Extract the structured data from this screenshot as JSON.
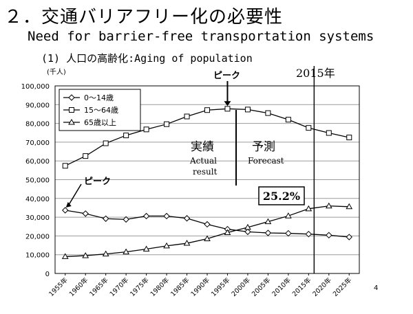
{
  "slide": {
    "title": "２．交通バリアフリー化の必要性",
    "subtitle": "Need for barrier-free transportation systems",
    "section": "(1) 人口の高齢化:Aging of population",
    "page_number": "4"
  },
  "chart_data": {
    "type": "line",
    "ylabel": "(千人)",
    "ylim": [
      0,
      100000
    ],
    "yticks": [
      "0",
      "10,000",
      "20,000",
      "30,000",
      "40,000",
      "50,000",
      "60,000",
      "70,000",
      "80,000",
      "90,000",
      "100,000"
    ],
    "grid": true,
    "legend_position": "top-left",
    "categories": [
      "1955年",
      "1960年",
      "1965年",
      "1970年",
      "1975年",
      "1980年",
      "1985年",
      "1990年",
      "1995年",
      "2000年",
      "2005年",
      "2010年",
      "2015年",
      "2020年",
      "2025年"
    ],
    "series": [
      {
        "name": "0～14歳",
        "marker": "diamond",
        "values": [
          33700,
          31900,
          29200,
          28800,
          30600,
          30600,
          29400,
          26200,
          23600,
          22200,
          21600,
          21400,
          21000,
          20400,
          19400
        ]
      },
      {
        "name": "15～64歳",
        "marker": "square",
        "values": [
          57400,
          62600,
          69400,
          73600,
          76800,
          79600,
          83700,
          87100,
          87800,
          87400,
          85500,
          82000,
          77600,
          74900,
          72500
        ]
      },
      {
        "name": "65歳以上",
        "marker": "triangle",
        "values": [
          9000,
          9500,
          10400,
          11500,
          13000,
          14700,
          16100,
          18500,
          21800,
          24600,
          27600,
          30700,
          34500,
          36000,
          35600
        ]
      }
    ],
    "forecast_divider_label": "2015年",
    "annotations": {
      "actual_ja": "実績",
      "actual_en_1": "Actual",
      "actual_en_2": "result",
      "forecast_ja": "予測",
      "forecast_en": "Forecast",
      "peak_top": "ピーク",
      "peak_left": "ピーク",
      "share_65plus": "25.2%"
    }
  }
}
